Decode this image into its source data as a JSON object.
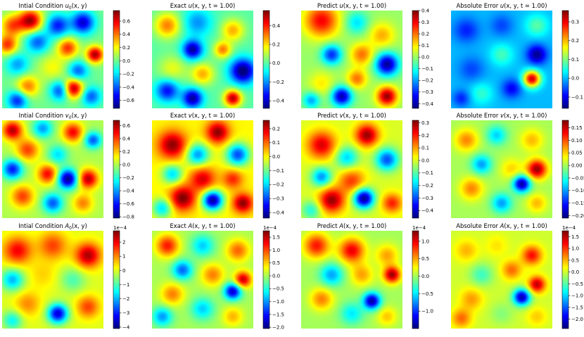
{
  "chart_data": [
    {
      "type": "heatmap",
      "title": "Intial Condition u0(x, y)",
      "title_parts": [
        "Intial Condition ",
        "u",
        "0",
        "(x, y)"
      ],
      "colormap": "jet",
      "clim": [
        -0.72,
        0.76
      ],
      "colorbar_ticks": [
        "0.6",
        "0.4",
        "0.2",
        "0.0",
        "−0.2",
        "−0.4",
        "−0.6"
      ],
      "colorbar_tick_values": [
        0.6,
        0.4,
        0.2,
        0.0,
        -0.2,
        -0.4,
        -0.6
      ],
      "colorbar_exponent": "",
      "blobs": [
        [
          0.1,
          0.15,
          0.45,
          0.08
        ],
        [
          0.28,
          0.1,
          0.7,
          0.08
        ],
        [
          0.55,
          0.15,
          -0.5,
          0.08
        ],
        [
          0.8,
          0.12,
          -0.6,
          0.08
        ],
        [
          0.05,
          0.35,
          0.5,
          0.07
        ],
        [
          0.35,
          0.32,
          -0.4,
          0.08
        ],
        [
          0.65,
          0.38,
          0.5,
          0.07
        ],
        [
          0.92,
          0.45,
          0.7,
          0.06
        ],
        [
          0.15,
          0.55,
          -0.3,
          0.08
        ],
        [
          0.5,
          0.58,
          0.2,
          0.1
        ],
        [
          0.75,
          0.62,
          -0.4,
          0.07
        ],
        [
          0.25,
          0.78,
          0.4,
          0.08
        ],
        [
          0.58,
          0.82,
          -0.5,
          0.07
        ],
        [
          0.7,
          0.8,
          0.75,
          0.07
        ],
        [
          0.15,
          0.92,
          -0.5,
          0.07
        ],
        [
          0.88,
          0.88,
          -0.4,
          0.07
        ]
      ]
    },
    {
      "type": "heatmap",
      "title": "Exact u(x, y, t = 1.00)",
      "title_parts": [
        "Exact ",
        "u",
        "",
        "(x, y, t = 1.00)"
      ],
      "colormap": "jet",
      "clim": [
        -0.48,
        0.56
      ],
      "colorbar_ticks": [
        "0.4",
        "0.2",
        "0.0",
        "−0.2",
        "−0.4"
      ],
      "colorbar_tick_values": [
        0.4,
        0.2,
        0.0,
        -0.2,
        -0.4
      ],
      "colorbar_exponent": "",
      "blobs": [
        [
          0.15,
          0.15,
          0.3,
          0.09
        ],
        [
          0.45,
          0.12,
          -0.2,
          0.1
        ],
        [
          0.8,
          0.2,
          0.25,
          0.08
        ],
        [
          0.4,
          0.4,
          -0.45,
          0.07
        ],
        [
          0.7,
          0.4,
          0.3,
          0.06
        ],
        [
          0.9,
          0.62,
          -0.5,
          0.09
        ],
        [
          0.2,
          0.6,
          0.15,
          0.1
        ],
        [
          0.5,
          0.65,
          0.25,
          0.08
        ],
        [
          0.15,
          0.82,
          -0.35,
          0.08
        ],
        [
          0.4,
          0.9,
          -0.45,
          0.07
        ],
        [
          0.8,
          0.9,
          0.5,
          0.06
        ]
      ]
    },
    {
      "type": "heatmap",
      "title": "Predict u(x, y, t = 1.00)",
      "title_parts": [
        "Predict ",
        "u",
        "",
        "(x, y, t = 1.00)"
      ],
      "colormap": "jet",
      "clim": [
        -0.44,
        0.4
      ],
      "colorbar_ticks": [
        "0.4",
        "0.3",
        "0.2",
        "0.1",
        "0.0",
        "−0.1",
        "−0.2",
        "−0.3",
        "−0.4"
      ],
      "colorbar_tick_values": [
        0.4,
        0.3,
        0.2,
        0.1,
        0.0,
        -0.1,
        -0.2,
        -0.3,
        -0.4
      ],
      "colorbar_exponent": "",
      "blobs": [
        [
          0.2,
          0.1,
          0.3,
          0.12
        ],
        [
          0.55,
          0.12,
          -0.15,
          0.08
        ],
        [
          0.8,
          0.25,
          0.15,
          0.09
        ],
        [
          0.3,
          0.45,
          -0.3,
          0.07
        ],
        [
          0.6,
          0.45,
          0.2,
          0.08
        ],
        [
          0.85,
          0.55,
          -0.42,
          0.08
        ],
        [
          0.55,
          0.7,
          0.2,
          0.07
        ],
        [
          0.2,
          0.75,
          0.1,
          0.09
        ],
        [
          0.4,
          0.88,
          -0.4,
          0.07
        ],
        [
          0.85,
          0.88,
          0.38,
          0.07
        ],
        [
          0.1,
          0.92,
          -0.2,
          0.06
        ]
      ]
    },
    {
      "type": "heatmap",
      "title": "Absolute Error u(x, y, t = 1.00)",
      "title_parts": [
        "Absolute Error ",
        "u",
        "",
        "(x, y, t = 1.00)"
      ],
      "colormap": "jet",
      "clim": [
        -0.16,
        0.36
      ],
      "colorbar_ticks": [
        "0.3",
        "0.2",
        "0.1",
        "0.0",
        "−0.1"
      ],
      "colorbar_tick_values": [
        0.3,
        0.2,
        0.1,
        0.0,
        -0.1
      ],
      "colorbar_exponent": "",
      "blobs": [
        [
          0.15,
          0.2,
          -0.08,
          0.09
        ],
        [
          0.5,
          0.15,
          -0.06,
          0.08
        ],
        [
          0.85,
          0.15,
          0.08,
          0.08
        ],
        [
          0.85,
          0.45,
          -0.15,
          0.07
        ],
        [
          0.5,
          0.45,
          0.07,
          0.08
        ],
        [
          0.2,
          0.6,
          -0.06,
          0.09
        ],
        [
          0.8,
          0.7,
          0.32,
          0.06
        ],
        [
          0.6,
          0.8,
          -0.1,
          0.07
        ],
        [
          0.3,
          0.85,
          0.06,
          0.08
        ],
        [
          0.1,
          0.9,
          -0.08,
          0.06
        ]
      ]
    },
    {
      "type": "heatmap",
      "title": "Intial Condition v0(x, y)",
      "title_parts": [
        "Intial Condition ",
        "v",
        "0",
        "(x, y)"
      ],
      "colormap": "jet",
      "clim": [
        -0.82,
        0.68
      ],
      "colorbar_ticks": [
        "0.6",
        "0.4",
        "0.2",
        "0.0",
        "−0.2",
        "−0.4",
        "−0.6",
        "−0.8"
      ],
      "colorbar_tick_values": [
        0.6,
        0.4,
        0.2,
        0.0,
        -0.2,
        -0.4,
        -0.6,
        -0.8
      ],
      "colorbar_exponent": "",
      "blobs": [
        [
          0.1,
          0.1,
          0.6,
          0.07
        ],
        [
          0.4,
          0.08,
          -0.4,
          0.07
        ],
        [
          0.7,
          0.12,
          0.5,
          0.07
        ],
        [
          0.9,
          0.2,
          -0.5,
          0.06
        ],
        [
          0.25,
          0.3,
          0.4,
          0.08
        ],
        [
          0.55,
          0.35,
          -0.3,
          0.07
        ],
        [
          0.1,
          0.5,
          -0.6,
          0.07
        ],
        [
          0.45,
          0.55,
          0.5,
          0.07
        ],
        [
          0.65,
          0.6,
          -0.8,
          0.07
        ],
        [
          0.85,
          0.6,
          0.6,
          0.07
        ],
        [
          0.2,
          0.78,
          0.4,
          0.08
        ],
        [
          0.5,
          0.85,
          -0.5,
          0.07
        ],
        [
          0.8,
          0.85,
          0.3,
          0.07
        ]
      ]
    },
    {
      "type": "heatmap",
      "title": "Exact v(x, y, t = 1.00)",
      "title_parts": [
        "Exact ",
        "v",
        "",
        "(x, y, t = 1.00)"
      ],
      "colormap": "jet",
      "clim": [
        -0.44,
        0.26
      ],
      "colorbar_ticks": [
        "0.2",
        "0.1",
        "0.0",
        "−0.1",
        "−0.2",
        "−0.3",
        "−0.4"
      ],
      "colorbar_tick_values": [
        0.2,
        0.1,
        0.0,
        -0.1,
        -0.2,
        -0.3,
        -0.4
      ],
      "colorbar_exponent": "",
      "blobs": [
        [
          0.2,
          0.25,
          0.25,
          0.1
        ],
        [
          0.65,
          0.12,
          0.25,
          0.08
        ],
        [
          0.85,
          0.35,
          -0.3,
          0.08
        ],
        [
          0.45,
          0.35,
          -0.25,
          0.08
        ],
        [
          0.2,
          0.55,
          -0.2,
          0.07
        ],
        [
          0.5,
          0.6,
          0.2,
          0.09
        ],
        [
          0.8,
          0.6,
          0.15,
          0.07
        ],
        [
          0.3,
          0.8,
          0.26,
          0.09
        ],
        [
          0.6,
          0.82,
          -0.42,
          0.07
        ],
        [
          0.9,
          0.85,
          0.25,
          0.07
        ],
        [
          0.1,
          0.9,
          -0.2,
          0.07
        ]
      ]
    },
    {
      "type": "heatmap",
      "title": "Predict v(x, y, t = 1.00)",
      "title_parts": [
        "Predict ",
        "v",
        "",
        "(x, y, t = 1.00)"
      ],
      "colormap": "jet",
      "clim": [
        -0.46,
        0.32
      ],
      "colorbar_ticks": [
        "0.3",
        "0.2",
        "0.1",
        "0.0",
        "−0.1",
        "−0.2",
        "−0.3",
        "−0.4"
      ],
      "colorbar_tick_values": [
        0.3,
        0.2,
        0.1,
        0.0,
        -0.1,
        -0.2,
        -0.3,
        -0.4
      ],
      "colorbar_exponent": "",
      "blobs": [
        [
          0.2,
          0.25,
          0.25,
          0.1
        ],
        [
          0.65,
          0.15,
          0.3,
          0.08
        ],
        [
          0.85,
          0.4,
          -0.3,
          0.08
        ],
        [
          0.45,
          0.38,
          -0.2,
          0.08
        ],
        [
          0.2,
          0.58,
          -0.25,
          0.07
        ],
        [
          0.5,
          0.62,
          0.18,
          0.09
        ],
        [
          0.3,
          0.82,
          0.3,
          0.09
        ],
        [
          0.62,
          0.8,
          -0.45,
          0.07
        ],
        [
          0.9,
          0.85,
          0.2,
          0.07
        ],
        [
          0.1,
          0.92,
          -0.15,
          0.07
        ]
      ]
    },
    {
      "type": "heatmap",
      "title": "Absolute Error v(x, y, t = 1.00)",
      "title_parts": [
        "Absolute Error ",
        "v",
        "",
        "(x, y, t = 1.00)"
      ],
      "colormap": "jet",
      "clim": [
        -0.21,
        0.18
      ],
      "colorbar_ticks": [
        "0.15",
        "0.10",
        "0.05",
        "0.00",
        "−0.05",
        "−0.10",
        "−0.15",
        "−0.20"
      ],
      "colorbar_tick_values": [
        0.15,
        0.1,
        0.05,
        0.0,
        -0.05,
        -0.1,
        -0.15,
        -0.2
      ],
      "colorbar_exponent": "",
      "blobs": [
        [
          0.15,
          0.2,
          0.08,
          0.08
        ],
        [
          0.45,
          0.15,
          -0.08,
          0.07
        ],
        [
          0.8,
          0.2,
          0.06,
          0.08
        ],
        [
          0.3,
          0.45,
          -0.1,
          0.07
        ],
        [
          0.6,
          0.5,
          0.05,
          0.08
        ],
        [
          0.85,
          0.5,
          0.17,
          0.07
        ],
        [
          0.7,
          0.65,
          -0.2,
          0.06
        ],
        [
          0.2,
          0.7,
          0.08,
          0.08
        ],
        [
          0.5,
          0.85,
          -0.1,
          0.07
        ],
        [
          0.85,
          0.85,
          0.06,
          0.07
        ]
      ]
    },
    {
      "type": "heatmap",
      "title": "Intial Condition A0(x, y)",
      "title_parts": [
        "Intial Condition ",
        "A",
        "0",
        "(x, y)"
      ],
      "colormap": "jet",
      "clim": [
        -4.1,
        2.8
      ],
      "colorbar_ticks": [
        "2",
        "1",
        "0",
        "−1",
        "−2",
        "−3",
        "−4"
      ],
      "colorbar_tick_values": [
        2,
        1,
        0,
        -1,
        -2,
        -3,
        -4
      ],
      "colorbar_exponent": "1e−4",
      "blobs": [
        [
          0.15,
          0.2,
          2.0,
          0.1
        ],
        [
          0.5,
          0.15,
          1.5,
          0.1
        ],
        [
          0.85,
          0.25,
          2.5,
          0.09
        ],
        [
          0.1,
          0.5,
          -2.0,
          0.08
        ],
        [
          0.4,
          0.45,
          0.5,
          0.1
        ],
        [
          0.7,
          0.5,
          -1.0,
          0.09
        ],
        [
          0.25,
          0.75,
          1.0,
          0.09
        ],
        [
          0.55,
          0.85,
          -3.5,
          0.07
        ],
        [
          0.85,
          0.78,
          1.5,
          0.08
        ],
        [
          0.1,
          0.92,
          -1.5,
          0.07
        ]
      ]
    },
    {
      "type": "heatmap",
      "title": "Exact A(x, y, t = 1.00)",
      "title_parts": [
        "Exact ",
        "A",
        "",
        "(x, y, t = 1.00)"
      ],
      "colormap": "jet",
      "clim": [
        -2.05,
        1.75
      ],
      "colorbar_ticks": [
        "1.5",
        "1.0",
        "0.5",
        "0.0",
        "−0.5",
        "−1.0",
        "−1.5",
        "−2.0"
      ],
      "colorbar_tick_values": [
        1.5,
        1.0,
        0.5,
        0.0,
        -0.5,
        -1.0,
        -1.5,
        -2.0
      ],
      "colorbar_exponent": "1e−4",
      "blobs": [
        [
          0.15,
          0.15,
          1.2,
          0.08
        ],
        [
          0.5,
          0.15,
          -0.8,
          0.08
        ],
        [
          0.85,
          0.2,
          0.9,
          0.08
        ],
        [
          0.3,
          0.4,
          -1.2,
          0.07
        ],
        [
          0.6,
          0.45,
          0.8,
          0.08
        ],
        [
          0.9,
          0.5,
          1.5,
          0.06
        ],
        [
          0.8,
          0.62,
          -1.8,
          0.06
        ],
        [
          0.2,
          0.65,
          0.8,
          0.08
        ],
        [
          0.5,
          0.8,
          -0.8,
          0.08
        ],
        [
          0.8,
          0.88,
          0.6,
          0.07
        ],
        [
          0.1,
          0.88,
          -1.0,
          0.07
        ]
      ]
    },
    {
      "type": "heatmap",
      "title": "Predict A(x, y, t = 1.00)",
      "title_parts": [
        "Predict ",
        "A",
        "",
        "(x, y, t = 1.00)"
      ],
      "colormap": "jet",
      "clim": [
        -1.5,
        1.3
      ],
      "colorbar_ticks": [
        "1.0",
        "0.5",
        "0.0",
        "−0.5",
        "−1.0"
      ],
      "colorbar_tick_values": [
        1.0,
        0.5,
        0.0,
        -0.5,
        -1.0
      ],
      "colorbar_exponent": "1e−4",
      "blobs": [
        [
          0.15,
          0.15,
          0.9,
          0.09
        ],
        [
          0.5,
          0.2,
          1.0,
          0.09
        ],
        [
          0.85,
          0.25,
          0.5,
          0.08
        ],
        [
          0.3,
          0.45,
          -0.7,
          0.08
        ],
        [
          0.6,
          0.45,
          0.5,
          0.08
        ],
        [
          0.9,
          0.45,
          1.2,
          0.06
        ],
        [
          0.7,
          0.72,
          -1.4,
          0.06
        ],
        [
          0.2,
          0.7,
          0.6,
          0.08
        ],
        [
          0.5,
          0.85,
          -0.5,
          0.08
        ],
        [
          0.85,
          0.88,
          0.4,
          0.07
        ]
      ]
    },
    {
      "type": "heatmap",
      "title": "Absolute Error A(x, y, t = 1.00)",
      "title_parts": [
        "Absolute Error ",
        "A",
        "",
        "(x, y, t = 1.00)"
      ],
      "colormap": "jet",
      "clim": [
        -2.4,
        1.75
      ],
      "colorbar_ticks": [
        "1.5",
        "1.0",
        "0.5",
        "0.0",
        "−0.5",
        "−1.0",
        "−1.5",
        "−2.0"
      ],
      "colorbar_tick_values": [
        1.5,
        1.0,
        0.5,
        0.0,
        -0.5,
        -1.0,
        -1.5,
        -2.0
      ],
      "colorbar_exponent": "1e−4",
      "blobs": [
        [
          0.15,
          0.2,
          0.5,
          0.08
        ],
        [
          0.45,
          0.15,
          0.3,
          0.08
        ],
        [
          0.8,
          0.25,
          1.2,
          0.07
        ],
        [
          0.3,
          0.45,
          -0.6,
          0.08
        ],
        [
          0.6,
          0.4,
          0.8,
          0.07
        ],
        [
          0.85,
          0.55,
          1.5,
          0.06
        ],
        [
          0.7,
          0.68,
          -2.2,
          0.06
        ],
        [
          0.2,
          0.7,
          0.6,
          0.08
        ],
        [
          0.5,
          0.85,
          -0.3,
          0.08
        ],
        [
          0.85,
          0.88,
          0.4,
          0.07
        ],
        [
          0.1,
          0.9,
          0.8,
          0.07
        ]
      ]
    }
  ]
}
